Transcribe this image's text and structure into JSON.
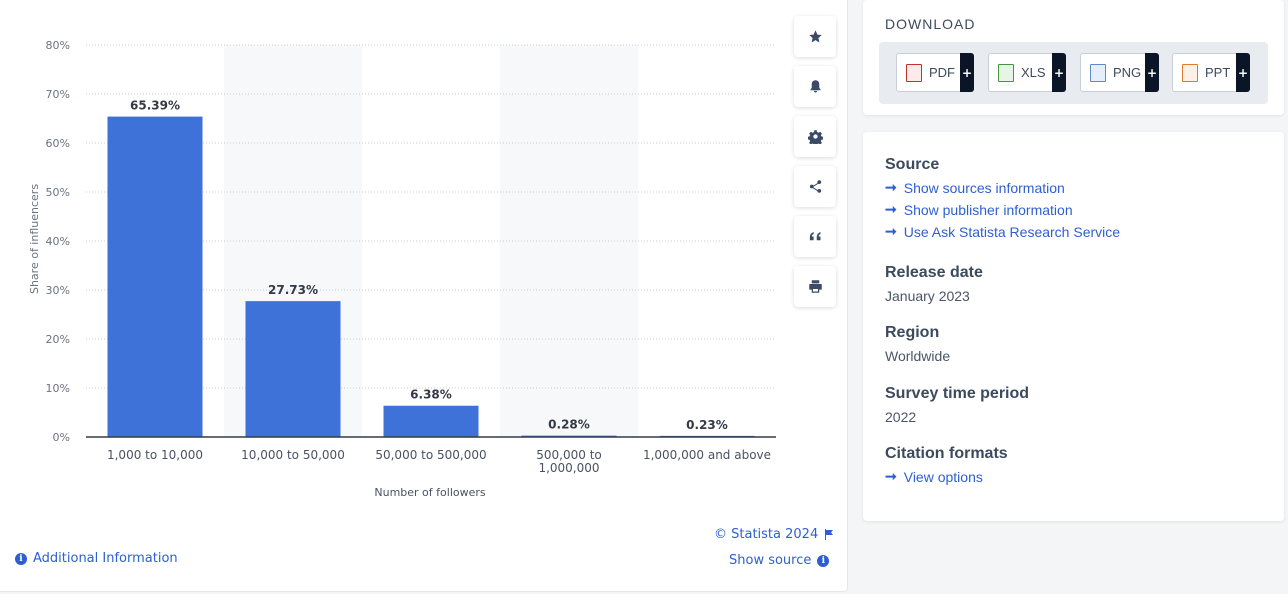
{
  "chart_data": {
    "type": "bar",
    "categories": [
      "1,000 to 10,000",
      "10,000 to 50,000",
      "50,000 to 500,000",
      "500,000 to 1,000,000",
      "1,000,000 and above"
    ],
    "category_lines": [
      [
        "1,000 to 10,000"
      ],
      [
        "10,000 to 50,000"
      ],
      [
        "50,000 to 500,000"
      ],
      [
        "500,000 to",
        "1,000,000"
      ],
      [
        "1,000,000 and above"
      ]
    ],
    "values": [
      65.39,
      27.73,
      6.38,
      0.28,
      0.23
    ],
    "data_labels": [
      "65.39%",
      "27.73%",
      "6.38%",
      "0.28%",
      "0.23%"
    ],
    "xlabel": "Number of followers",
    "ylabel": "Share of influencers",
    "ylim": [
      0,
      80
    ],
    "yticks": [
      0,
      10,
      20,
      30,
      40,
      50,
      60,
      70,
      80
    ],
    "ytick_labels": [
      "0%",
      "10%",
      "20%",
      "30%",
      "40%",
      "50%",
      "60%",
      "70%",
      "80%"
    ],
    "grid": true,
    "bar_color": "#3f72d9"
  },
  "toolbar": {
    "icons": [
      "star-icon",
      "bell-icon",
      "gear-icon",
      "share-icon",
      "quote-icon",
      "print-icon"
    ]
  },
  "footer": {
    "copyright": "© Statista 2024",
    "show_source": "Show source",
    "additional_info": "Additional Information"
  },
  "download": {
    "title": "DOWNLOAD",
    "buttons": [
      {
        "label": "PDF",
        "color": "#c8302c"
      },
      {
        "label": "XLS",
        "color": "#3f9a3a"
      },
      {
        "label": "PNG",
        "color": "#5b8bc9"
      },
      {
        "label": "PPT",
        "color": "#e07b2c"
      }
    ],
    "plus": "+"
  },
  "info": {
    "source_heading": "Source",
    "source_links": [
      "Show sources information",
      "Show publisher information",
      "Use Ask Statista Research Service"
    ],
    "release_heading": "Release date",
    "release_value": "January 2023",
    "region_heading": "Region",
    "region_value": "Worldwide",
    "survey_heading": "Survey time period",
    "survey_value": "2022",
    "citation_heading": "Citation formats",
    "citation_link": "View options"
  }
}
